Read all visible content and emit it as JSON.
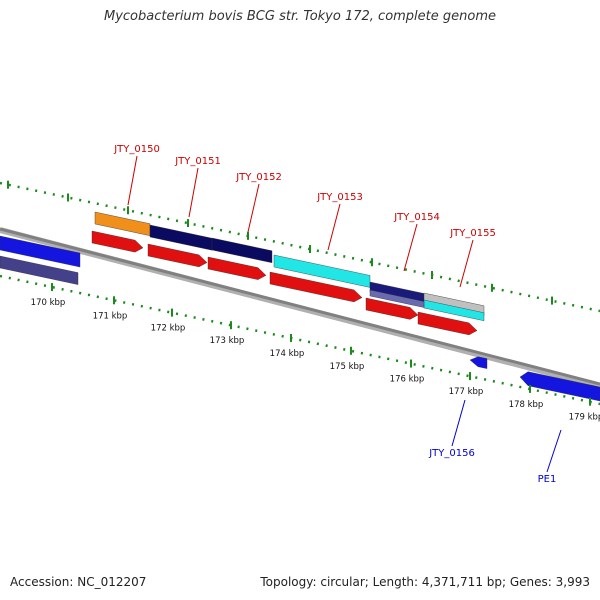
{
  "title": "Mycobacterium bovis BCG str. Tokyo 172, complete genome",
  "footer": {
    "accession": "Accession: NC_012207",
    "summary": "Topology: circular; Length: 4,371,711 bp; Genes: 3,993"
  },
  "colors": {
    "red_label": "#cc0000",
    "blue_label": "#0000cc",
    "tick_green": "#1a8a1a",
    "backbone": "#808080"
  },
  "ticks": [
    "170 kbp",
    "171 kbp",
    "172 kbp",
    "173 kbp",
    "174 kbp",
    "175 kbp",
    "176 kbp",
    "177 kbp",
    "178 kbp",
    "179 kbp"
  ],
  "gene_labels": [
    {
      "text": "JTY_0150",
      "strand": "forward"
    },
    {
      "text": "JTY_0151",
      "strand": "forward"
    },
    {
      "text": "JTY_0152",
      "strand": "forward"
    },
    {
      "text": "JTY_0153",
      "strand": "forward"
    },
    {
      "text": "JTY_0154",
      "strand": "forward"
    },
    {
      "text": "JTY_0155",
      "strand": "forward"
    },
    {
      "text": "JTY_0156",
      "strand": "reverse"
    },
    {
      "text": "PE1",
      "strand": "reverse"
    }
  ]
}
